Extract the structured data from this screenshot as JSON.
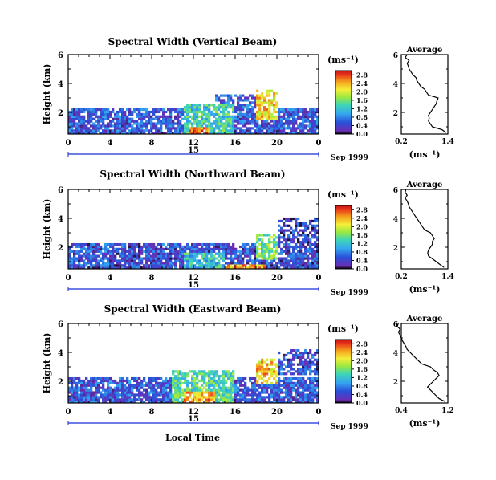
{
  "figure": {
    "xlabel": "Local Time",
    "date_label": "Sep 1999",
    "colorbar_unit": "(ms⁻¹)",
    "average_title": "Average",
    "average_unit": "(ms⁻¹)"
  },
  "chart_data": [
    {
      "type": "heatmap",
      "title": "Spectral Width (Vertical Beam)",
      "ylabel": "Height (km)",
      "xlabel": "",
      "x_ticks": [
        "0",
        "4",
        "8",
        "12",
        "16",
        "20",
        "0"
      ],
      "x_range": [
        0,
        24
      ],
      "y_ticks": [
        "2",
        "4",
        "6"
      ],
      "y_range": [
        0.5,
        6
      ],
      "day_label": "15",
      "date_label": "Sep 1999",
      "colorbar": {
        "unit": "(ms⁻¹)",
        "ticks": [
          "0.0",
          "0.4",
          "0.8",
          "1.2",
          "1.6",
          "2.0",
          "2.4",
          "2.8"
        ],
        "range": [
          0,
          3.0
        ]
      },
      "features": [
        {
          "t0": 0,
          "t1": 24,
          "z0": 0.5,
          "z1": 2.2,
          "level": 0.55
        },
        {
          "t0": 11,
          "t1": 16,
          "z0": 0.5,
          "z1": 2.6,
          "level": 1.3
        },
        {
          "t0": 11.5,
          "t1": 13.5,
          "z0": 0.5,
          "z1": 1.0,
          "level": 2.6
        },
        {
          "t0": 18,
          "t1": 20,
          "z0": 1.5,
          "z1": 3.5,
          "level": 2.2
        },
        {
          "t0": 14,
          "t1": 18,
          "z0": 2.0,
          "z1": 3.2,
          "level": 0.6
        }
      ],
      "average": {
        "x_ticks": [
          "0.2",
          "1.4"
        ],
        "x_range": [
          0.2,
          1.4
        ],
        "y_ticks": [
          "2",
          "4",
          "6"
        ],
        "height_km": [
          0.6,
          0.8,
          1.0,
          1.2,
          1.4,
          1.6,
          1.8,
          2.0,
          2.2,
          2.4,
          2.6,
          2.8,
          3.0,
          3.2,
          3.4,
          3.6,
          3.8,
          4.0,
          4.2,
          4.4,
          4.6,
          4.8,
          5.0,
          5.2,
          5.4,
          5.6,
          5.8,
          6.0
        ],
        "width_ms": [
          1.35,
          1.25,
          1.0,
          0.95,
          0.9,
          0.92,
          0.9,
          0.95,
          1.0,
          1.05,
          1.1,
          1.12,
          1.15,
          0.9,
          0.85,
          0.8,
          0.7,
          0.65,
          0.6,
          0.58,
          0.5,
          0.45,
          0.4,
          0.38,
          0.35,
          0.4,
          0.3,
          0.35
        ]
      }
    },
    {
      "type": "heatmap",
      "title": "Spectral Width (Northward Beam)",
      "ylabel": "Height (km)",
      "xlabel": "",
      "x_ticks": [
        "0",
        "4",
        "8",
        "12",
        "16",
        "20",
        "0"
      ],
      "x_range": [
        0,
        24
      ],
      "y_ticks": [
        "2",
        "4",
        "6"
      ],
      "y_range": [
        0.5,
        6
      ],
      "day_label": "15",
      "date_label": "Sep 1999",
      "colorbar": {
        "unit": "(ms⁻¹)",
        "ticks": [
          "0.0",
          "0.4",
          "0.8",
          "1.2",
          "1.6",
          "2.0",
          "2.4",
          "2.8"
        ],
        "range": [
          0,
          3.0
        ]
      },
      "features": [
        {
          "t0": 0,
          "t1": 24,
          "z0": 0.5,
          "z1": 2.3,
          "level": 0.5
        },
        {
          "t0": 11,
          "t1": 15,
          "z0": 0.5,
          "z1": 1.6,
          "level": 1.2
        },
        {
          "t0": 15,
          "t1": 19,
          "z0": 0.5,
          "z1": 0.9,
          "level": 2.4
        },
        {
          "t0": 18,
          "t1": 20,
          "z0": 1.2,
          "z1": 3.0,
          "level": 1.6
        },
        {
          "t0": 20,
          "t1": 24,
          "z0": 2.0,
          "z1": 4.0,
          "level": 0.4
        }
      ],
      "average": {
        "x_ticks": [
          "0.2",
          "1.4"
        ],
        "x_range": [
          0.2,
          1.4
        ],
        "y_ticks": [
          "2",
          "4",
          "6"
        ],
        "height_km": [
          0.6,
          0.8,
          1.0,
          1.2,
          1.4,
          1.6,
          1.8,
          2.0,
          2.2,
          2.4,
          2.6,
          2.8,
          3.0,
          3.2,
          3.4,
          3.6,
          3.8,
          4.0,
          4.2,
          4.4,
          4.6,
          4.8,
          5.0,
          5.2,
          5.4,
          5.6,
          5.8,
          6.0
        ],
        "width_ms": [
          1.3,
          1.2,
          1.1,
          1.0,
          0.9,
          0.88,
          0.9,
          0.95,
          1.0,
          1.0,
          1.05,
          1.0,
          0.95,
          0.8,
          0.75,
          0.7,
          0.65,
          0.6,
          0.55,
          0.5,
          0.45,
          0.4,
          0.38,
          0.35,
          0.3,
          0.35,
          0.3,
          0.32
        ]
      }
    },
    {
      "type": "heatmap",
      "title": "Spectral Width (Eastward Beam)",
      "ylabel": "Height (km)",
      "xlabel": "Local Time",
      "x_ticks": [
        "0",
        "4",
        "8",
        "12",
        "16",
        "20",
        "0"
      ],
      "x_range": [
        0,
        24
      ],
      "y_ticks": [
        "2",
        "4",
        "6"
      ],
      "y_range": [
        0.5,
        6
      ],
      "day_label": "15",
      "date_label": "Sep 1999",
      "colorbar": {
        "unit": "(ms⁻¹)",
        "ticks": [
          "0.0",
          "0.4",
          "0.8",
          "1.2",
          "1.6",
          "2.0",
          "2.4",
          "2.8"
        ],
        "range": [
          0,
          3.0
        ]
      },
      "features": [
        {
          "t0": 0,
          "t1": 24,
          "z0": 0.5,
          "z1": 2.3,
          "level": 0.55
        },
        {
          "t0": 10,
          "t1": 16,
          "z0": 0.5,
          "z1": 2.8,
          "level": 1.4
        },
        {
          "t0": 11,
          "t1": 14,
          "z0": 0.5,
          "z1": 1.3,
          "level": 2.4
        },
        {
          "t0": 18,
          "t1": 20,
          "z0": 1.8,
          "z1": 3.6,
          "level": 2.3
        },
        {
          "t0": 20,
          "t1": 24,
          "z0": 2.4,
          "z1": 4.2,
          "level": 0.5
        }
      ],
      "average": {
        "x_ticks": [
          "0.4",
          "1.2"
        ],
        "x_range": [
          0.4,
          1.2
        ],
        "y_ticks": [
          "2",
          "4",
          "6"
        ],
        "height_km": [
          0.6,
          0.8,
          1.0,
          1.2,
          1.4,
          1.6,
          1.8,
          2.0,
          2.2,
          2.4,
          2.6,
          2.8,
          3.0,
          3.2,
          3.4,
          3.6,
          3.8,
          4.0,
          4.2,
          4.4,
          4.6,
          4.8,
          5.0,
          5.2,
          5.4,
          5.6,
          5.8,
          6.0
        ],
        "width_ms": [
          1.15,
          1.05,
          1.0,
          0.95,
          0.9,
          0.85,
          0.9,
          0.95,
          1.0,
          1.05,
          1.02,
          0.95,
          0.9,
          0.75,
          0.7,
          0.65,
          0.6,
          0.55,
          0.5,
          0.48,
          0.45,
          0.42,
          0.4,
          0.38,
          0.35,
          0.38,
          0.33,
          0.35
        ]
      }
    }
  ]
}
